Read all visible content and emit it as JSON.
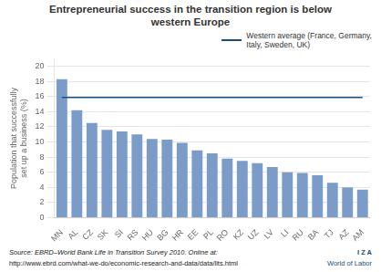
{
  "chart_data": {
    "type": "bar",
    "title": "Entrepreneurial success in the transition region is below\nwestern Europe",
    "ylabel": "Population that successfully\nset up a business (%)",
    "categories": [
      "MN",
      "AL",
      "CZ",
      "SK",
      "SI",
      "RS",
      "HU",
      "BG",
      "HR",
      "EE",
      "PL",
      "RO",
      "KZ",
      "UZ",
      "LV",
      "LI",
      "RU",
      "BA",
      "TJ",
      "AZ",
      "AM"
    ],
    "series": [
      {
        "type": "bar",
        "color": "#7b9bc8",
        "values": [
          18.3,
          14.2,
          12.5,
          11.6,
          11.4,
          11.0,
          10.4,
          10.3,
          9.9,
          8.9,
          8.5,
          7.8,
          7.5,
          7.2,
          6.7,
          6.0,
          5.9,
          5.6,
          4.6,
          4.0,
          3.7
        ]
      },
      {
        "type": "line",
        "name": "Western average (France, Germany,\nItaly, Sweden, UK)",
        "color": "#1a4f7a",
        "values": [
          15.9,
          15.9,
          15.9,
          15.9,
          15.9,
          15.9,
          15.9,
          15.9,
          15.9,
          15.9,
          15.9,
          15.9,
          15.9,
          15.9,
          15.9,
          15.9,
          15.9,
          15.9,
          15.9,
          15.9,
          15.9
        ]
      }
    ],
    "ylim": [
      0,
      21
    ],
    "yticks": [
      0,
      2,
      4,
      6,
      8,
      10,
      12,
      14,
      16,
      18,
      20
    ],
    "grid": true,
    "legend": "upper right",
    "annotations": [
      {
        "text": "Source: EBRD–World Bank Life in Transition Survey 2010. Online at:",
        "color": "#222222"
      },
      {
        "text": "http://www.ebrd.com/what-we-do/economic-research-and-data/data/lits.html",
        "color": "#222222"
      },
      {
        "text": "I  Z  A",
        "color": "#1a4f7a"
      },
      {
        "text": "World of Labor",
        "color": "#1a4f7a"
      }
    ]
  }
}
